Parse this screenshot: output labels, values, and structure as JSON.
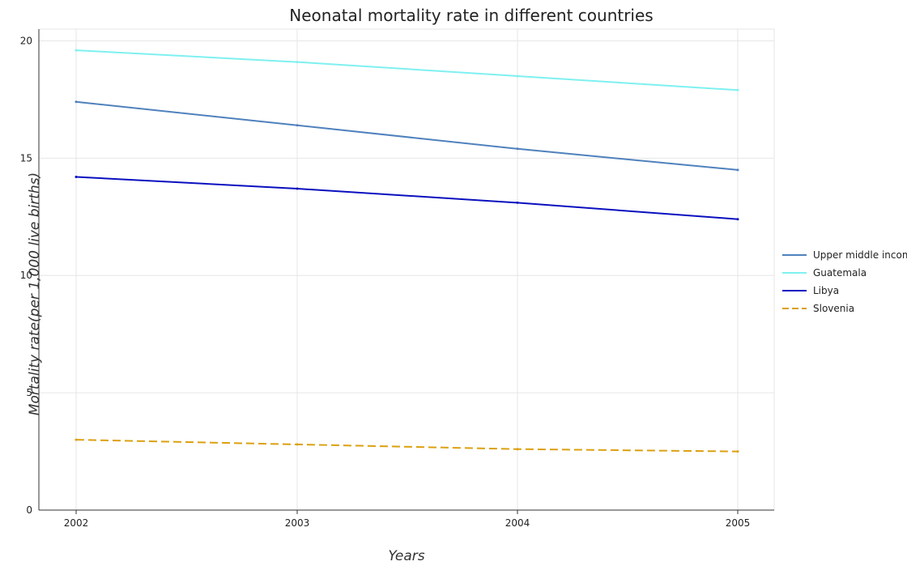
{
  "chart_data": {
    "type": "line",
    "title": "Neonatal mortality rate in different countries",
    "xlabel": "Years",
    "ylabel": "Mortality rate(per 1,000 live births)",
    "categories": [
      "2002",
      "2003",
      "2004",
      "2005"
    ],
    "ylim": [
      0,
      20.5
    ],
    "yticks": [
      "0",
      "5",
      "10",
      "15",
      "20"
    ],
    "ytick_values": [
      0,
      5,
      10,
      15,
      20
    ],
    "grid": true,
    "legend_position": "right",
    "series": [
      {
        "name": "Upper middle income",
        "color": "#4f81bd",
        "dash": "solid",
        "values": [
          17.4,
          16.4,
          15.4,
          14.5
        ]
      },
      {
        "name": "Guatemala",
        "color": "#7ff0f0",
        "dash": "solid",
        "values": [
          19.6,
          19.1,
          18.5,
          17.9
        ]
      },
      {
        "name": "Libya",
        "color": "#0a0fbf",
        "dash": "solid",
        "values": [
          14.2,
          13.7,
          13.1,
          12.4
        ]
      },
      {
        "name": "Slovenia",
        "color": "#dca010",
        "dash": "dashed",
        "values": [
          3.0,
          2.8,
          2.6,
          2.5
        ]
      }
    ]
  }
}
